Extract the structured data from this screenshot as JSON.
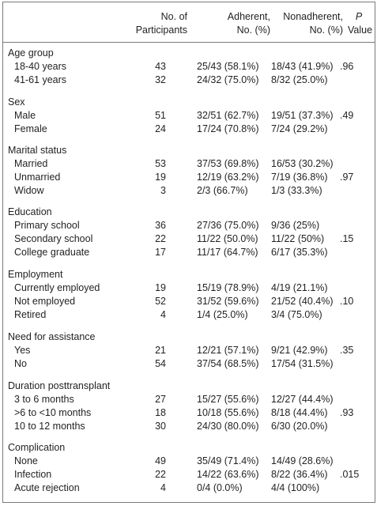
{
  "header": {
    "n_line1": "No. of",
    "n_line2": "Participants",
    "adh_line1": "Adherent,",
    "adh_line2": "No. (%)",
    "non_line1": "Nonadherent,",
    "non_line2": "No. (%)",
    "p_line1": "P",
    "p_line2": "Value"
  },
  "rows": [
    {
      "label": "Age group"
    },
    {
      "label": "18-40 years",
      "n": "43",
      "adh": "25/43 (58.1%)",
      "non": "18/43 (41.9%)",
      "p": ".96"
    },
    {
      "label": "41-61 years",
      "n": "32",
      "adh": "24/32 (75.0%)",
      "non": "8/32 (25.0%)",
      "p": ""
    },
    {
      "label": "Sex"
    },
    {
      "label": "Male",
      "n": "51",
      "adh": "32/51 (62.7%)",
      "non": "19/51 (37.3%)",
      "p": ".49"
    },
    {
      "label": "Female",
      "n": "24",
      "adh": "17/24 (70.8%)",
      "non": "7/24 (29.2%)",
      "p": ""
    },
    {
      "label": "Marital status"
    },
    {
      "label": "Married",
      "n": "53",
      "adh": "37/53 (69.8%)",
      "non": "16/53 (30.2%)",
      "p": ""
    },
    {
      "label": "Unmarried",
      "n": "19",
      "adh": "12/19 (63.2%)",
      "non": "7/19 (36.8%)",
      "p": ".97"
    },
    {
      "label": "Widow",
      "n": "3",
      "adh": "2/3 (66.7%)",
      "non": "1/3 (33.3%)",
      "p": ""
    },
    {
      "label": "Education"
    },
    {
      "label": "Primary school",
      "n": "36",
      "adh": "27/36 (75.0%)",
      "non": "9/36 (25%)",
      "p": ""
    },
    {
      "label": "Secondary school",
      "n": "22",
      "adh": "11/22 (50.0%)",
      "non": "11/22 (50%)",
      "p": ".15"
    },
    {
      "label": "College graduate",
      "n": "17",
      "adh": "11/17 (64.7%)",
      "non": "6/17 (35.3%)",
      "p": ""
    },
    {
      "label": "Employment"
    },
    {
      "label": "Currently employed",
      "n": "19",
      "adh": "15/19 (78.9%)",
      "non": "4/19 (21.1%)",
      "p": ""
    },
    {
      "label": "Not employed",
      "n": "52",
      "adh": "31/52 (59.6%)",
      "non": "21/52 (40.4%)",
      "p": ".10"
    },
    {
      "label": "Retired",
      "n": "4",
      "adh": "1/4 (25.0%)",
      "non": "3/4 (75.0%)",
      "p": ""
    },
    {
      "label": "Need for assistance"
    },
    {
      "label": "Yes",
      "n": "21",
      "adh": "12/21 (57.1%)",
      "non": "9/21 (42.9%)",
      "p": ".35"
    },
    {
      "label": "No",
      "n": "54",
      "adh": "37/54 (68.5%)",
      "non": "17/54 (31.5%)",
      "p": ""
    },
    {
      "label": "Duration  posttransplant"
    },
    {
      "label": "3 to 6 months",
      "n": "27",
      "adh": "15/27 (55.6%)",
      "non": "12/27 (44.4%)",
      "p": ""
    },
    {
      "label": ">6 to <10 months",
      "n": "18",
      "adh": "10/18 (55.6%)",
      "non": "8/18 (44.4%)",
      "p": ".93"
    },
    {
      "label": "10 to 12 months",
      "n": "30",
      "adh": "24/30 (80.0%)",
      "non": "6/30 (20.0%)",
      "p": ""
    },
    {
      "label": "Complication"
    },
    {
      "label": "None",
      "n": "49",
      "adh": "35/49 (71.4%)",
      "non": "14/49 (28.6%)",
      "p": ""
    },
    {
      "label": "Infection",
      "n": "22",
      "adh": "14/22 (63.6%)",
      "non": "8/22 (36.4%)",
      "p": ".015"
    },
    {
      "label": "Acute rejection",
      "n": "4",
      "adh": "0/4 (0.0%)",
      "non": "4/4 (100%)",
      "p": ""
    }
  ]
}
